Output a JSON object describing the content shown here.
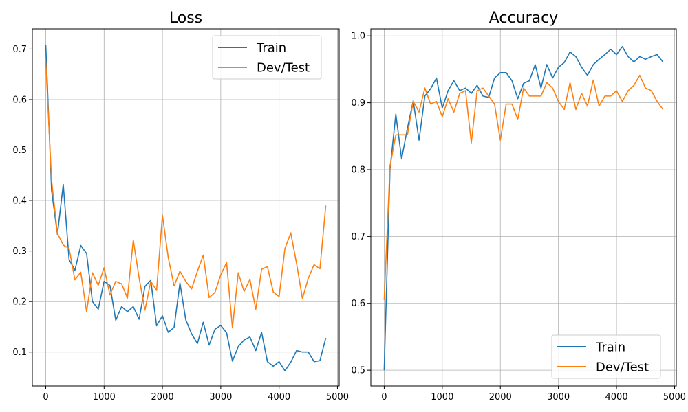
{
  "chart_data": [
    {
      "type": "line",
      "title": "Loss",
      "xlim": [
        -230,
        5030
      ],
      "ylim": [
        0.033,
        0.74
      ],
      "xticks": [
        0,
        1000,
        2000,
        3000,
        4000,
        5000
      ],
      "yticks": [
        0.1,
        0.2,
        0.3,
        0.4,
        0.5,
        0.6,
        0.7
      ],
      "grid": true,
      "legend": "top-right",
      "x": [
        0,
        100,
        200,
        300,
        400,
        500,
        600,
        700,
        800,
        900,
        1000,
        1100,
        1200,
        1300,
        1400,
        1500,
        1600,
        1700,
        1800,
        1900,
        2000,
        2100,
        2200,
        2300,
        2400,
        2500,
        2600,
        2700,
        2800,
        2900,
        3000,
        3100,
        3200,
        3300,
        3400,
        3500,
        3600,
        3700,
        3800,
        3900,
        4000,
        4100,
        4200,
        4300,
        4400,
        4500,
        4600,
        4700,
        4800
      ],
      "series": [
        {
          "name": "Train",
          "color": "#1f77b4",
          "values": [
            0.708,
            0.42,
            0.333,
            0.432,
            0.283,
            0.262,
            0.311,
            0.295,
            0.2,
            0.185,
            0.24,
            0.232,
            0.163,
            0.19,
            0.18,
            0.19,
            0.165,
            0.23,
            0.242,
            0.152,
            0.172,
            0.139,
            0.149,
            0.237,
            0.164,
            0.136,
            0.117,
            0.159,
            0.114,
            0.145,
            0.153,
            0.138,
            0.082,
            0.111,
            0.124,
            0.13,
            0.103,
            0.139,
            0.081,
            0.072,
            0.081,
            0.063,
            0.08,
            0.103,
            0.1,
            0.1,
            0.081,
            0.083,
            0.128
          ]
        },
        {
          "name": "Dev/Test",
          "color": "#ff7f0e",
          "values": [
            0.675,
            0.44,
            0.335,
            0.312,
            0.305,
            0.243,
            0.258,
            0.18,
            0.257,
            0.232,
            0.267,
            0.213,
            0.24,
            0.235,
            0.207,
            0.322,
            0.247,
            0.183,
            0.24,
            0.222,
            0.371,
            0.287,
            0.231,
            0.26,
            0.24,
            0.225,
            0.26,
            0.292,
            0.208,
            0.218,
            0.253,
            0.277,
            0.148,
            0.257,
            0.22,
            0.244,
            0.185,
            0.264,
            0.269,
            0.219,
            0.21,
            0.305,
            0.336,
            0.275,
            0.206,
            0.246,
            0.273,
            0.265,
            0.39
          ]
        }
      ]
    },
    {
      "type": "line",
      "title": "Accuracy",
      "xlim": [
        -230,
        5030
      ],
      "ylim": [
        0.4765,
        1.0105
      ],
      "xticks": [
        0,
        1000,
        2000,
        3000,
        4000,
        5000
      ],
      "yticks": [
        0.5,
        0.6,
        0.7,
        0.8,
        0.9,
        1.0
      ],
      "grid": true,
      "legend": "bottom-right",
      "x": [
        0,
        100,
        200,
        300,
        400,
        500,
        600,
        700,
        800,
        900,
        1000,
        1100,
        1200,
        1300,
        1400,
        1500,
        1600,
        1700,
        1800,
        1900,
        2000,
        2100,
        2200,
        2300,
        2400,
        2500,
        2600,
        2700,
        2800,
        2900,
        3000,
        3100,
        3200,
        3300,
        3400,
        3500,
        3600,
        3700,
        3800,
        3900,
        4000,
        4100,
        4200,
        4300,
        4400,
        4500,
        4600,
        4700,
        4800
      ],
      "series": [
        {
          "name": "Train",
          "color": "#1f77b4",
          "values": [
            0.5,
            0.8,
            0.883,
            0.816,
            0.862,
            0.903,
            0.844,
            0.91,
            0.921,
            0.937,
            0.892,
            0.918,
            0.933,
            0.918,
            0.922,
            0.914,
            0.926,
            0.91,
            0.908,
            0.937,
            0.945,
            0.945,
            0.933,
            0.906,
            0.929,
            0.933,
            0.957,
            0.922,
            0.957,
            0.937,
            0.953,
            0.96,
            0.976,
            0.969,
            0.953,
            0.941,
            0.957,
            0.965,
            0.972,
            0.98,
            0.972,
            0.984,
            0.969,
            0.961,
            0.969,
            0.965,
            0.969,
            0.972,
            0.961
          ]
        },
        {
          "name": "Dev/Test",
          "color": "#ff7f0e",
          "values": [
            0.605,
            0.805,
            0.852,
            0.852,
            0.852,
            0.902,
            0.886,
            0.922,
            0.898,
            0.902,
            0.879,
            0.906,
            0.886,
            0.914,
            0.918,
            0.84,
            0.918,
            0.922,
            0.91,
            0.898,
            0.844,
            0.898,
            0.898,
            0.875,
            0.922,
            0.91,
            0.91,
            0.91,
            0.93,
            0.922,
            0.902,
            0.89,
            0.93,
            0.89,
            0.914,
            0.895,
            0.934,
            0.895,
            0.91,
            0.91,
            0.918,
            0.902,
            0.918,
            0.926,
            0.941,
            0.922,
            0.918,
            0.902,
            0.89
          ]
        }
      ]
    }
  ]
}
